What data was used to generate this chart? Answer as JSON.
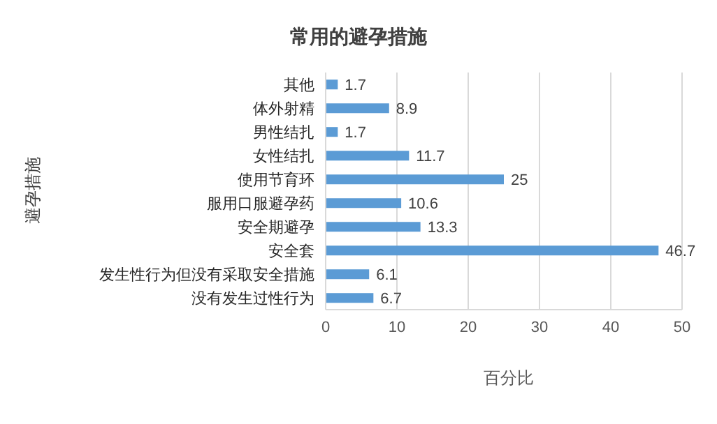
{
  "chart_data": {
    "type": "bar",
    "orientation": "horizontal",
    "title": "常用的避孕措施",
    "xlabel": "百分比",
    "ylabel": "避孕措施",
    "categories": [
      "其他",
      "体外射精",
      "男性结扎",
      "女性结扎",
      "使用节育环",
      "服用口服避孕药",
      "安全期避孕",
      "安全套",
      "发生性行为但没有采取安全措施",
      "没有发生过性行为"
    ],
    "values": [
      1.7,
      8.9,
      1.7,
      11.7,
      25,
      10.6,
      13.3,
      46.7,
      6.1,
      6.7
    ],
    "color": "#5b9bd5",
    "xlim": [
      0,
      50
    ],
    "xticks": [
      0,
      10,
      20,
      30,
      40,
      50
    ],
    "grid": "x",
    "data_labels": true,
    "legend": false
  }
}
